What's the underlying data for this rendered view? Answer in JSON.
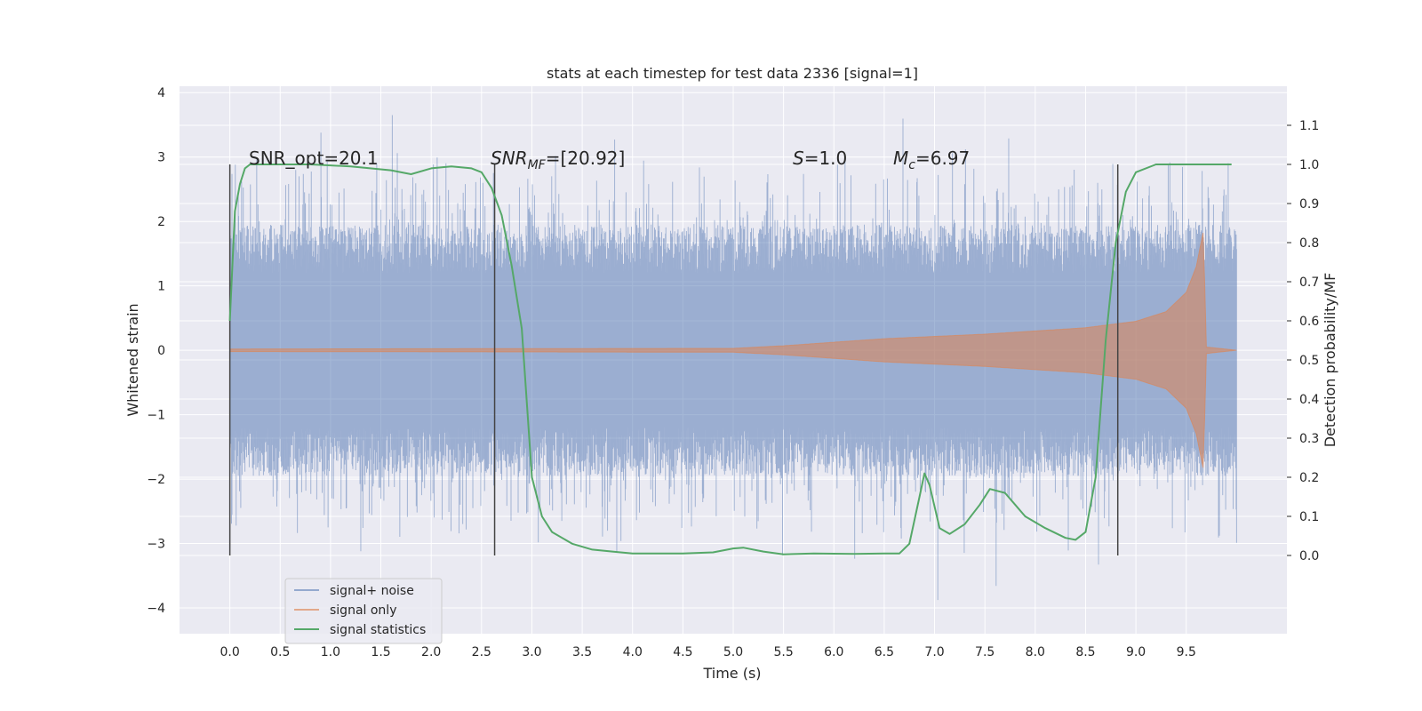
{
  "chart_data": {
    "type": "line",
    "title": "stats at each timestep for test data 2336 [signal=1]",
    "xlabel": "Time (s)",
    "ylabel": "Whitened strain",
    "y2label": "Detection probability/MF",
    "xlim": [
      -0.5,
      10.5
    ],
    "ylim": [
      -4.4,
      4.1
    ],
    "y2lim": [
      -0.2,
      1.2
    ],
    "xticks": [
      "0.0",
      "0.5",
      "1.0",
      "1.5",
      "2.0",
      "2.5",
      "3.0",
      "3.5",
      "4.0",
      "4.5",
      "5.0",
      "5.5",
      "6.0",
      "6.5",
      "7.0",
      "7.5",
      "8.0",
      "8.5",
      "9.0",
      "9.5"
    ],
    "yticks": [
      "4",
      "3",
      "2",
      "1",
      "0",
      "−1",
      "−2",
      "−3",
      "−4"
    ],
    "y2ticks": [
      "0.0",
      "0.1",
      "0.2",
      "0.3",
      "0.4",
      "0.5",
      "0.6",
      "0.7",
      "0.8",
      "0.9",
      "1.0",
      "1.1"
    ],
    "grid": true,
    "legend_position": "lower-left",
    "colors": {
      "background": "#eaeaf2",
      "noise": "#4c72b0",
      "signal": "#dd8452",
      "stats": "#55a868",
      "markers": "#444444"
    },
    "annotations": {
      "snr_opt": "SNR_opt=20.1",
      "snr_mf_prefix": "SNR",
      "snr_mf_sub": "MF",
      "snr_mf_value": "=[20.92]",
      "s_label": "S",
      "s_value": "=1.0",
      "mc_label": "M",
      "mc_sub": "c",
      "mc_value": "=6.97"
    },
    "vertical_lines_x": [
      0.0,
      2.63,
      8.82
    ],
    "series": [
      {
        "name": "signal+ noise",
        "x_range": [
          0.0,
          10.0
        ],
        "band_typical": [
          -1.5,
          1.5
        ],
        "extremes": [
          -4.0,
          3.7
        ]
      },
      {
        "name": "signal only",
        "description_points": {
          "x": [
            0.0,
            5.0,
            5.5,
            6.5,
            7.5,
            8.5,
            9.0,
            9.3,
            9.5,
            9.6,
            9.67,
            9.7,
            10.0
          ],
          "amplitude": [
            0.02,
            0.03,
            0.07,
            0.18,
            0.25,
            0.35,
            0.45,
            0.6,
            0.9,
            1.3,
            1.85,
            0.05,
            0.0
          ]
        }
      },
      {
        "name": "signal statistics",
        "x": [
          0.0,
          0.05,
          0.1,
          0.15,
          0.2,
          0.4,
          0.8,
          1.2,
          1.6,
          1.8,
          2.0,
          2.2,
          2.4,
          2.5,
          2.6,
          2.7,
          2.8,
          2.9,
          3.0,
          3.1,
          3.2,
          3.4,
          3.6,
          3.8,
          4.0,
          4.5,
          4.8,
          5.0,
          5.1,
          5.3,
          5.5,
          5.8,
          6.2,
          6.5,
          6.65,
          6.75,
          6.85,
          6.9,
          6.95,
          7.05,
          7.15,
          7.3,
          7.45,
          7.55,
          7.7,
          7.9,
          8.1,
          8.3,
          8.4,
          8.5,
          8.6,
          8.7,
          8.8,
          8.9,
          9.0,
          9.2,
          9.5,
          9.8,
          9.95
        ],
        "y": [
          0.6,
          0.88,
          0.95,
          0.99,
          1.0,
          1.0,
          1.0,
          0.995,
          0.985,
          0.975,
          0.99,
          0.995,
          0.99,
          0.98,
          0.94,
          0.87,
          0.74,
          0.58,
          0.2,
          0.1,
          0.06,
          0.03,
          0.015,
          0.01,
          0.005,
          0.005,
          0.008,
          0.018,
          0.02,
          0.01,
          0.003,
          0.005,
          0.004,
          0.005,
          0.005,
          0.03,
          0.15,
          0.21,
          0.18,
          0.07,
          0.055,
          0.08,
          0.13,
          0.17,
          0.16,
          0.1,
          0.07,
          0.045,
          0.04,
          0.06,
          0.2,
          0.55,
          0.8,
          0.93,
          0.98,
          1.0,
          1.0,
          1.0,
          1.0
        ]
      }
    ]
  }
}
